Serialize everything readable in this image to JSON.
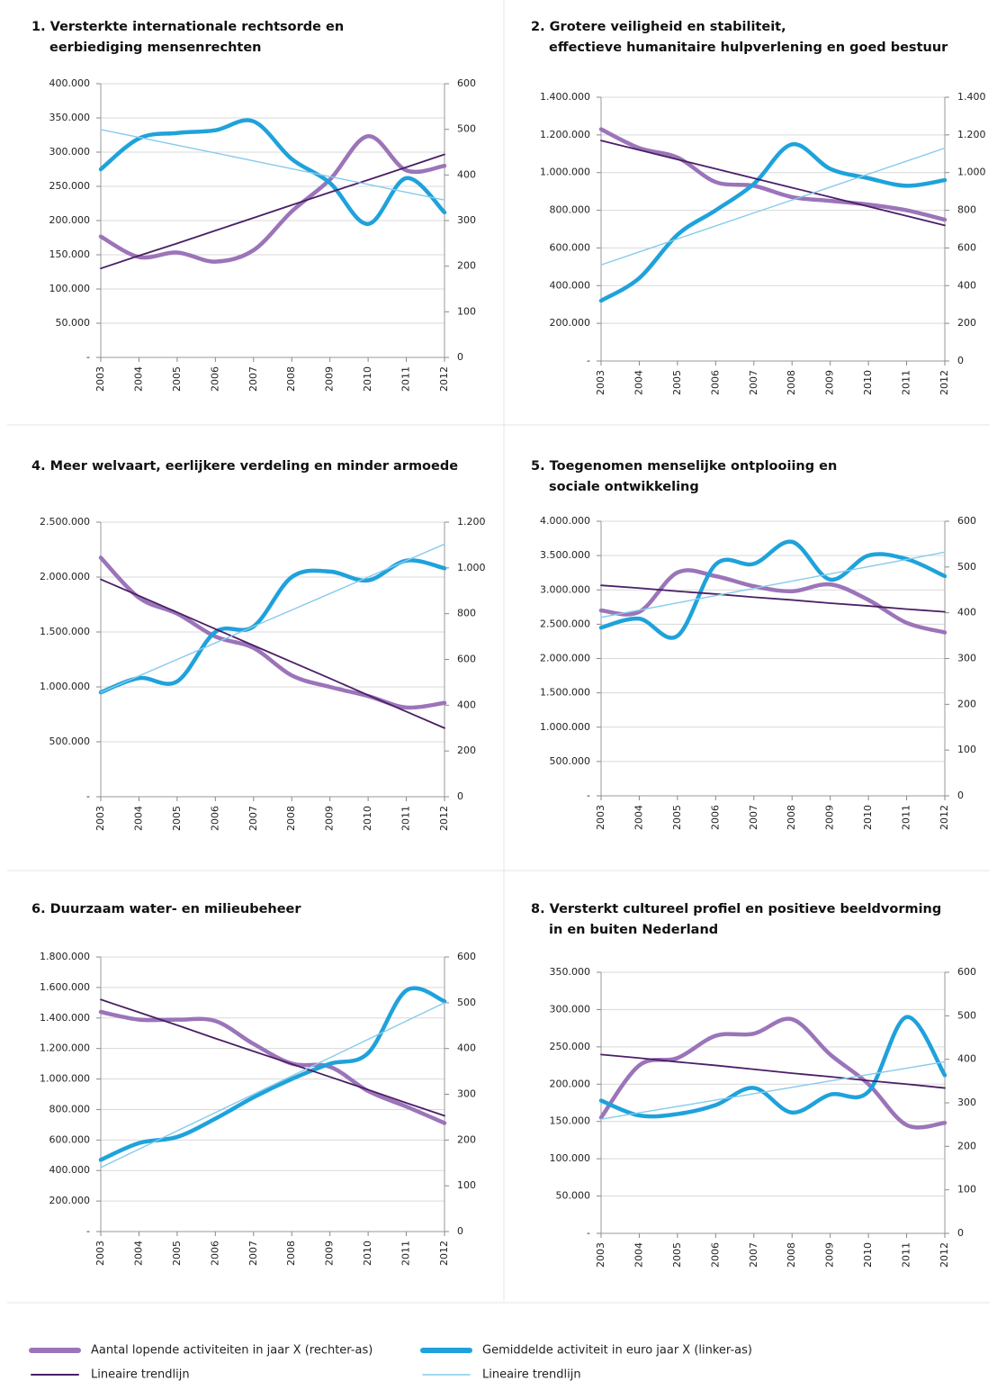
{
  "chart_data": [
    {
      "type": "line",
      "title": [
        "1. Versterkte internationale rechtsorde en",
        "eerbiediging mensenrechten"
      ],
      "categories": [
        "2003",
        "2004",
        "2005",
        "2006",
        "2007",
        "2008",
        "2009",
        "2010",
        "2011",
        "2012"
      ],
      "ylim": [
        0,
        400000
      ],
      "yticks": [
        {
          "value": 0,
          "label": "-"
        },
        {
          "value": 50000,
          "label": "50.000"
        },
        {
          "value": 100000,
          "label": "100.000"
        },
        {
          "value": 150000,
          "label": "150.000"
        },
        {
          "value": 200000,
          "label": "200.000"
        },
        {
          "value": 250000,
          "label": "250.000"
        },
        {
          "value": 300000,
          "label": "300.000"
        },
        {
          "value": 350000,
          "label": "350.000"
        },
        {
          "value": 400000,
          "label": "400.000"
        }
      ],
      "y2lim": [
        0,
        600
      ],
      "y2ticks": [
        0,
        100,
        200,
        300,
        400,
        500,
        600
      ],
      "grid": true,
      "series": [
        {
          "color": "#9b74b9",
          "axis": "y2",
          "smooth": true,
          "values": [
            265,
            220,
            230,
            210,
            235,
            320,
            390,
            485,
            410,
            420
          ]
        },
        {
          "color": "#1fa2db",
          "smooth": true,
          "values": [
            275000,
            320000,
            328000,
            332000,
            345000,
            290000,
            255000,
            195000,
            262000,
            212000
          ]
        },
        {
          "color": "#4a1f66",
          "axis": "y2",
          "values": [
            195,
            223,
            250,
            278,
            306,
            334,
            362,
            389,
            417,
            445
          ]
        },
        {
          "color": "#86cbec",
          "values": [
            333000,
            321600,
            310100,
            298700,
            287200,
            275800,
            264300,
            252900,
            241400,
            230000
          ]
        }
      ]
    },
    {
      "type": "line",
      "title": [
        "2. Grotere veiligheid en stabiliteit,",
        "effectieve humanitaire hulpverlening en goed bestuur"
      ],
      "categories": [
        "2003",
        "2004",
        "2005",
        "2006",
        "2007",
        "2008",
        "2009",
        "2010",
        "2011",
        "2012"
      ],
      "ylim": [
        0,
        1400000
      ],
      "yticks": [
        {
          "value": 0,
          "label": "-"
        },
        {
          "value": 200000,
          "label": "200.000"
        },
        {
          "value": 400000,
          "label": "400.000"
        },
        {
          "value": 600000,
          "label": "600.000"
        },
        {
          "value": 800000,
          "label": "800.000"
        },
        {
          "value": 1000000,
          "label": "1.000.000"
        },
        {
          "value": 1200000,
          "label": "1.200.000"
        },
        {
          "value": 1400000,
          "label": "1.400.000"
        }
      ],
      "y2lim": [
        0,
        1400
      ],
      "y2ticks": [
        0,
        200,
        400,
        600,
        800,
        {
          "value": 1000,
          "label": "1.000"
        },
        {
          "value": 1200,
          "label": "1.200"
        },
        {
          "value": 1400,
          "label": "1.400"
        }
      ],
      "grid": true,
      "series": [
        {
          "color": "#9b74b9",
          "axis": "y2",
          "smooth": true,
          "values": [
            1230,
            1130,
            1080,
            950,
            930,
            870,
            850,
            830,
            800,
            750
          ]
        },
        {
          "color": "#1fa2db",
          "smooth": true,
          "values": [
            320000,
            440000,
            670000,
            800000,
            940000,
            1150000,
            1020000,
            970000,
            930000,
            960000
          ]
        },
        {
          "color": "#4a1f66",
          "axis": "y2",
          "values": [
            1170,
            1120,
            1070,
            1020,
            970,
            920,
            870,
            820,
            770,
            720
          ]
        },
        {
          "color": "#86cbec",
          "values": [
            510000,
            579000,
            648000,
            717000,
            786000,
            854000,
            923000,
            992000,
            1061000,
            1130000
          ]
        }
      ]
    },
    {
      "type": "line",
      "title": [
        "4. Meer welvaart, eerlijkere verdeling en minder armoede"
      ],
      "categories": [
        "2003",
        "2004",
        "2005",
        "2006",
        "2007",
        "2008",
        "2009",
        "2010",
        "2011",
        "2012"
      ],
      "ylim": [
        0,
        2500000
      ],
      "yticks": [
        {
          "value": 0,
          "label": "-"
        },
        {
          "value": 500000,
          "label": "500.000"
        },
        {
          "value": 1000000,
          "label": "1.000.000"
        },
        {
          "value": 1500000,
          "label": "1.500.000"
        },
        {
          "value": 2000000,
          "label": "2.000.000"
        },
        {
          "value": 2500000,
          "label": "2.500.000"
        }
      ],
      "y2lim": [
        0,
        1200
      ],
      "y2ticks": [
        0,
        200,
        400,
        600,
        800,
        {
          "value": 1000,
          "label": "1.000"
        },
        {
          "value": 1200,
          "label": "1.200"
        }
      ],
      "grid": true,
      "series": [
        {
          "color": "#9b74b9",
          "axis": "y2",
          "smooth": true,
          "values": [
            1045,
            870,
            800,
            700,
            650,
            530,
            480,
            440,
            390,
            410
          ]
        },
        {
          "color": "#1fa2db",
          "smooth": true,
          "values": [
            950000,
            1080000,
            1050000,
            1500000,
            1550000,
            2000000,
            2050000,
            1970000,
            2150000,
            2080000
          ]
        },
        {
          "color": "#4a1f66",
          "axis": "y2",
          "values": [
            950,
            878,
            806,
            733,
            661,
            589,
            517,
            444,
            372,
            300
          ]
        },
        {
          "color": "#86cbec",
          "values": [
            950000,
            1100000,
            1250000,
            1400000,
            1550000,
            1700000,
            1850000,
            2000000,
            2150000,
            2300000
          ]
        }
      ]
    },
    {
      "type": "line",
      "title": [
        "5. Toegenomen menselijke ontplooiing en",
        "sociale ontwikkeling"
      ],
      "categories": [
        "2003",
        "2004",
        "2005",
        "2006",
        "2007",
        "2008",
        "2009",
        "2010",
        "2011",
        "2012"
      ],
      "ylim": [
        0,
        4000000
      ],
      "yticks": [
        {
          "value": 0,
          "label": "-"
        },
        {
          "value": 500000,
          "label": "500.000"
        },
        {
          "value": 1000000,
          "label": "1.000.000"
        },
        {
          "value": 1500000,
          "label": "1.500.000"
        },
        {
          "value": 2000000,
          "label": "2.000.000"
        },
        {
          "value": 2500000,
          "label": "2.500.000"
        },
        {
          "value": 3000000,
          "label": "3.000.000"
        },
        {
          "value": 3500000,
          "label": "3.500.000"
        },
        {
          "value": 4000000,
          "label": "4.000.000"
        }
      ],
      "y2lim": [
        0,
        600
      ],
      "y2ticks": [
        0,
        100,
        200,
        300,
        400,
        500,
        600
      ],
      "grid": true,
      "series": [
        {
          "color": "#9b74b9",
          "axis": "y2",
          "smooth": true,
          "values": [
            405,
            402,
            488,
            480,
            458,
            447,
            462,
            428,
            378,
            357
          ]
        },
        {
          "color": "#1fa2db",
          "smooth": true,
          "values": [
            2450000,
            2580000,
            2330000,
            3370000,
            3380000,
            3700000,
            3150000,
            3500000,
            3450000,
            3200000
          ]
        },
        {
          "color": "#4a1f66",
          "axis": "y2",
          "values": [
            460,
            454,
            447,
            441,
            434,
            428,
            421,
            415,
            408,
            402
          ]
        },
        {
          "color": "#86cbec",
          "values": [
            2600000,
            2706000,
            2811000,
            2917000,
            3022000,
            3128000,
            3233000,
            3339000,
            3444000,
            3550000
          ]
        }
      ]
    },
    {
      "type": "line",
      "title": [
        "6. Duurzaam water- en milieubeheer"
      ],
      "categories": [
        "2003",
        "2004",
        "2005",
        "2006",
        "2007",
        "2008",
        "2009",
        "2010",
        "2011",
        "2012"
      ],
      "ylim": [
        0,
        1800000
      ],
      "yticks": [
        {
          "value": 0,
          "label": "-"
        },
        {
          "value": 200000,
          "label": "200.000"
        },
        {
          "value": 400000,
          "label": "400.000"
        },
        {
          "value": 600000,
          "label": "600.000"
        },
        {
          "value": 800000,
          "label": "800.000"
        },
        {
          "value": 1000000,
          "label": "1.000.000"
        },
        {
          "value": 1200000,
          "label": "1.200.000"
        },
        {
          "value": 1400000,
          "label": "1.400.000"
        },
        {
          "value": 1600000,
          "label": "1.600.000"
        },
        {
          "value": 1800000,
          "label": "1.800.000"
        }
      ],
      "y2lim": [
        0,
        600
      ],
      "y2ticks": [
        0,
        100,
        200,
        300,
        400,
        500,
        600
      ],
      "grid": true,
      "series": [
        {
          "color": "#9b74b9",
          "axis": "y2",
          "smooth": true,
          "values": [
            480,
            463,
            463,
            460,
            410,
            367,
            360,
            307,
            273,
            237
          ]
        },
        {
          "color": "#1fa2db",
          "smooth": true,
          "values": [
            470000,
            580000,
            620000,
            740000,
            880000,
            1000000,
            1100000,
            1170000,
            1580000,
            1510000
          ]
        },
        {
          "color": "#4a1f66",
          "axis": "y2",
          "values": [
            507,
            479,
            451,
            422,
            394,
            366,
            338,
            310,
            281,
            253
          ]
        },
        {
          "color": "#86cbec",
          "values": [
            420000,
            540000,
            660000,
            780000,
            900000,
            1020000,
            1140000,
            1260000,
            1380000,
            1500000
          ]
        }
      ]
    },
    {
      "type": "line",
      "title": [
        "8. Versterkt cultureel profiel en positieve beeldvorming",
        "in en buiten Nederland"
      ],
      "categories": [
        "2003",
        "2004",
        "2005",
        "2006",
        "2007",
        "2008",
        "2009",
        "2010",
        "2011",
        "2012"
      ],
      "ylim": [
        0,
        350000
      ],
      "yticks": [
        {
          "value": 0,
          "label": "-"
        },
        {
          "value": 50000,
          "label": "50.000"
        },
        {
          "value": 100000,
          "label": "100.000"
        },
        {
          "value": 150000,
          "label": "150.000"
        },
        {
          "value": 200000,
          "label": "200.000"
        },
        {
          "value": 250000,
          "label": "250.000"
        },
        {
          "value": 300000,
          "label": "300.000"
        },
        {
          "value": 350000,
          "label": "350.000"
        }
      ],
      "y2lim": [
        0,
        600
      ],
      "y2ticks": [
        0,
        100,
        200,
        300,
        400,
        500,
        600
      ],
      "grid": true,
      "series": [
        {
          "color": "#9b74b9",
          "axis": "y2",
          "smooth": true,
          "values": [
            266,
            386,
            403,
            454,
            459,
            492,
            411,
            343,
            249,
            254
          ]
        },
        {
          "color": "#1fa2db",
          "smooth": true,
          "values": [
            178000,
            158000,
            160000,
            172000,
            195000,
            162000,
            186000,
            190000,
            290000,
            212000
          ]
        },
        {
          "color": "#4a1f66",
          "axis": "y2",
          "values": [
            411,
            403,
            394,
            386,
            377,
            368,
            360,
            351,
            343,
            334
          ]
        },
        {
          "color": "#86cbec",
          "values": [
            153000,
            161600,
            170100,
            178700,
            187200,
            195800,
            204300,
            212900,
            221400,
            230000
          ]
        }
      ]
    }
  ],
  "legend": [
    "Aantal lopende activiteiten in jaar X (rechter-as)",
    "Gemiddelde activiteit in euro jaar X (linker-as)",
    "Lineaire trendlijn",
    "Lineaire trendlijn"
  ]
}
